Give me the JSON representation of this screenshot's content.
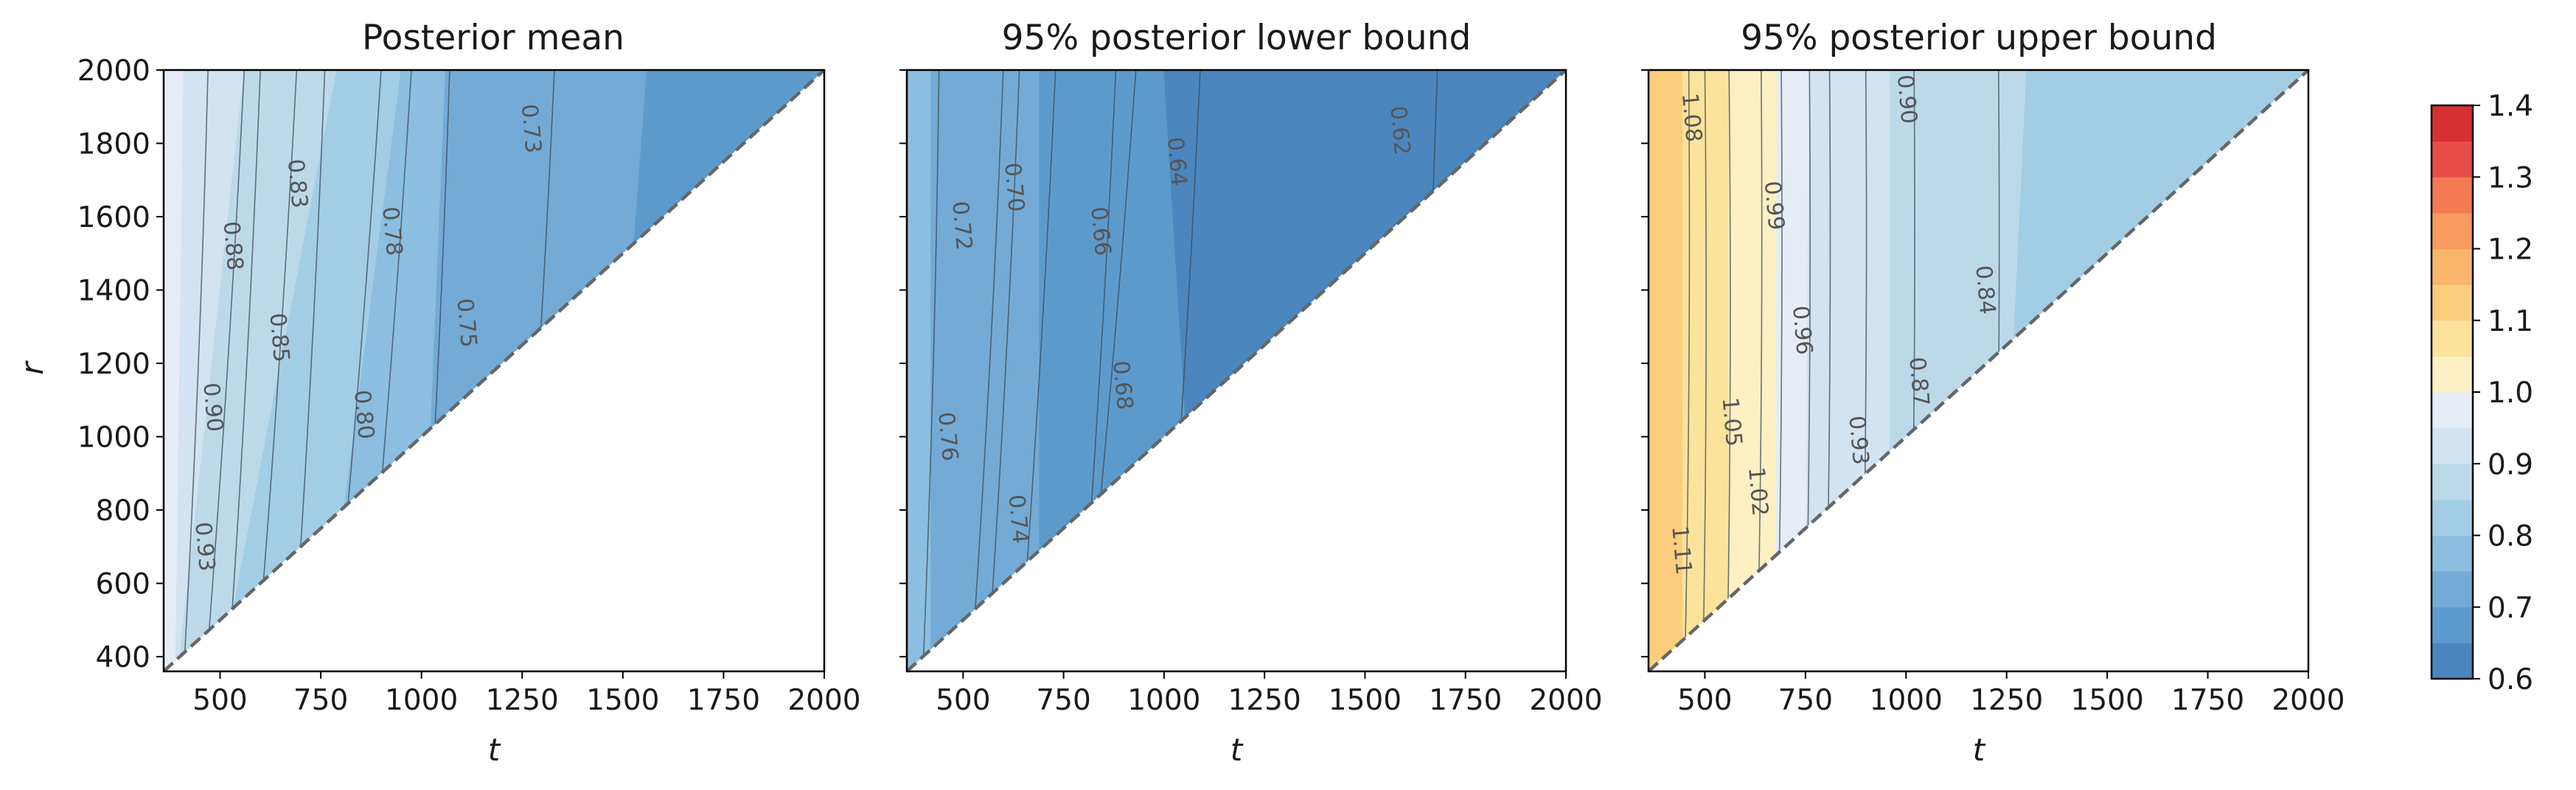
{
  "colorbar": {
    "levels": [
      0.6,
      0.65,
      0.7,
      0.75,
      0.8,
      0.85,
      0.9,
      0.95,
      1.0,
      1.05,
      1.1,
      1.15,
      1.2,
      1.25,
      1.3,
      1.35,
      1.4
    ],
    "colors": [
      "#4b86bf",
      "#5d9acc",
      "#73abd6",
      "#8bbedf",
      "#a3cde5",
      "#bcd9ea",
      "#d2e3f1",
      "#e6edf6",
      "#fcf0c4",
      "#fce39b",
      "#fbcd7c",
      "#f9b569",
      "#f89b5e",
      "#f37a52",
      "#e74e47",
      "#d73030"
    ],
    "tick_labels": [
      "0.6",
      "0.7",
      "0.8",
      "0.9",
      "1.0",
      "1.1",
      "1.2",
      "1.3",
      "1.4"
    ]
  },
  "chart_data": [
    {
      "type": "contour",
      "title": "Posterior mean",
      "xlabel": "t",
      "ylabel": "r",
      "xlim": [
        360,
        2000
      ],
      "ylim": [
        360,
        2000
      ],
      "x_ticks": [
        500,
        750,
        1000,
        1250,
        1500,
        1750,
        2000
      ],
      "y_ticks": [
        400,
        600,
        800,
        1000,
        1200,
        1400,
        1600,
        1800,
        2000
      ],
      "domain": "r >= t",
      "diagonal": "r = t (dashed)",
      "bands": [
        {
          "from": 0.95,
          "to": 1.0,
          "t_at_r2000": [
            360,
            410
          ],
          "t_at_r400": [
            360,
            390
          ]
        },
        {
          "from": 0.9,
          "to": 0.95,
          "t_at_r2000": [
            410,
            560
          ],
          "t_at_r400": [
            390,
            400
          ]
        },
        {
          "from": 0.85,
          "to": 0.9,
          "t_at_r2000": [
            560,
            790
          ],
          "t_at_r400": [
            400,
            510
          ]
        },
        {
          "from": 0.8,
          "to": 0.85,
          "t_at_r2000": [
            790,
            950
          ],
          "t_at_r400": [
            510,
            760
          ]
        },
        {
          "from": 0.75,
          "to": 0.8,
          "t_at_r2000": [
            950,
            1060
          ],
          "t_at_r400": [
            760,
            1000
          ]
        },
        {
          "from": 0.7,
          "to": 0.75,
          "t_at_r2000": [
            1060,
            1560
          ],
          "t_at_r400": [
            1000,
            1450
          ]
        },
        {
          "from": 0.65,
          "to": 0.7,
          "t_at_r2000": [
            1560,
            2000
          ],
          "t_at_r400": [
            1450,
            2000
          ]
        }
      ],
      "contours": [
        {
          "level": "0.93",
          "t_top": 470,
          "t_bottom": 410,
          "label_at": [
            460,
            700
          ]
        },
        {
          "level": "0.90",
          "t_top": 560,
          "t_bottom": 465,
          "label_at": [
            480,
            1080
          ]
        },
        {
          "level": "0.88",
          "t_top": 600,
          "t_bottom": 520,
          "label_at": [
            530,
            1520
          ]
        },
        {
          "level": "0.85",
          "t_top": 690,
          "t_bottom": 590,
          "label_at": [
            645,
            1270
          ]
        },
        {
          "level": "0.83",
          "t_top": 760,
          "t_bottom": 680,
          "label_at": [
            690,
            1690
          ]
        },
        {
          "level": "0.80",
          "t_top": 900,
          "t_bottom": 780,
          "label_at": [
            855,
            1060
          ]
        },
        {
          "level": "0.78",
          "t_top": 975,
          "t_bottom": 860,
          "label_at": [
            925,
            1560
          ]
        },
        {
          "level": "0.75",
          "t_top": 1070,
          "t_bottom": 1000,
          "label_at": [
            1110,
            1310
          ]
        },
        {
          "level": "0.73",
          "t_top": 1330,
          "t_bottom": 1240,
          "label_at": [
            1270,
            1840
          ]
        }
      ]
    },
    {
      "type": "contour",
      "title": "95% posterior lower bound",
      "xlabel": "t",
      "ylabel": "",
      "xlim": [
        360,
        2000
      ],
      "ylim": [
        360,
        2000
      ],
      "x_ticks": [
        500,
        750,
        1000,
        1250,
        1500,
        1750,
        2000
      ],
      "y_ticks": [
        400,
        600,
        800,
        1000,
        1200,
        1400,
        1600,
        1800,
        2000
      ],
      "domain": "r >= t",
      "diagonal": "r = t (dashed)",
      "bands": [
        {
          "from": 0.75,
          "to": 0.8,
          "t_at_r2000": [
            360,
            420
          ],
          "t_at_r400": [
            360,
            420
          ]
        },
        {
          "from": 0.7,
          "to": 0.75,
          "t_at_r2000": [
            420,
            690
          ],
          "t_at_r400": [
            420,
            690
          ]
        },
        {
          "from": 0.65,
          "to": 0.7,
          "t_at_r2000": [
            690,
            1000
          ],
          "t_at_r400": [
            690,
            1090
          ]
        },
        {
          "from": 0.6,
          "to": 0.65,
          "t_at_r2000": [
            1000,
            2000
          ],
          "t_at_r400": [
            1090,
            2000
          ]
        }
      ],
      "contours": [
        {
          "level": "0.76",
          "t_top": 440,
          "t_bottom": 400,
          "label_at": [
            460,
            1000
          ]
        },
        {
          "level": "0.74",
          "t_top": 640,
          "t_bottom": 560,
          "label_at": [
            635,
            775
          ]
        },
        {
          "level": "0.72",
          "t_top": 600,
          "t_bottom": 520,
          "label_at": [
            495,
            1575
          ]
        },
        {
          "level": "0.70",
          "t_top": 730,
          "t_bottom": 640,
          "label_at": [
            625,
            1680
          ]
        },
        {
          "level": "0.68",
          "t_top": 930,
          "t_bottom": 800,
          "label_at": [
            895,
            1140
          ]
        },
        {
          "level": "0.66",
          "t_top": 880,
          "t_bottom": 790,
          "label_at": [
            840,
            1560
          ]
        },
        {
          "level": "0.64",
          "t_top": 1090,
          "t_bottom": 1000,
          "label_at": [
            1030,
            1750
          ]
        },
        {
          "level": "0.62",
          "t_top": 1680,
          "t_bottom": 1610,
          "label_at": [
            1585,
            1835
          ]
        }
      ]
    },
    {
      "type": "contour",
      "title": "95% posterior upper bound",
      "xlabel": "t",
      "ylabel": "",
      "xlim": [
        360,
        2000
      ],
      "ylim": [
        360,
        2000
      ],
      "x_ticks": [
        500,
        750,
        1000,
        1250,
        1500,
        1750,
        2000
      ],
      "y_ticks": [
        400,
        600,
        800,
        1000,
        1200,
        1400,
        1600,
        1800,
        2000
      ],
      "domain": "r >= t",
      "diagonal": "r = t (dashed)",
      "bands": [
        {
          "from": 1.1,
          "to": 1.15,
          "t_at_r2000": [
            360,
            445
          ],
          "t_at_r400": [
            360,
            445
          ]
        },
        {
          "from": 1.05,
          "to": 1.1,
          "t_at_r2000": [
            445,
            560
          ],
          "t_at_r400": [
            445,
            560
          ]
        },
        {
          "from": 1.0,
          "to": 1.05,
          "t_at_r2000": [
            560,
            680
          ],
          "t_at_r400": [
            560,
            675
          ]
        },
        {
          "from": 0.95,
          "to": 1.0,
          "t_at_r2000": [
            680,
            760
          ],
          "t_at_r400": [
            675,
            750
          ]
        },
        {
          "from": 0.9,
          "to": 0.95,
          "t_at_r2000": [
            760,
            960
          ],
          "t_at_r400": [
            750,
            960
          ]
        },
        {
          "from": 0.85,
          "to": 0.9,
          "t_at_r2000": [
            960,
            1300
          ],
          "t_at_r400": [
            960,
            1230
          ]
        },
        {
          "from": 0.8,
          "to": 0.85,
          "t_at_r2000": [
            1300,
            2000
          ],
          "t_at_r400": [
            1230,
            2000
          ]
        }
      ],
      "contours": [
        {
          "level": "1.11",
          "t_top": 460,
          "t_bottom": 450,
          "label_at": [
            440,
            690
          ]
        },
        {
          "level": "1.08",
          "t_top": 500,
          "t_bottom": 495,
          "label_at": [
            465,
            1870
          ]
        },
        {
          "level": "1.05",
          "t_top": 560,
          "t_bottom": 555,
          "label_at": [
            565,
            1040
          ]
        },
        {
          "level": "1.02",
          "t_top": 640,
          "t_bottom": 630,
          "label_at": [
            630,
            850
          ]
        },
        {
          "level": "0.99",
          "t_top": 690,
          "t_bottom": 680,
          "label_at": [
            670,
            1630
          ]
        },
        {
          "level": "0.96",
          "t_top": 760,
          "t_bottom": 750,
          "label_at": [
            740,
            1290
          ]
        },
        {
          "level": "0.93",
          "t_top": 810,
          "t_bottom": 800,
          "label_at": [
            880,
            990
          ]
        },
        {
          "level": "0.90",
          "t_top": 900,
          "t_bottom": 890,
          "label_at": [
            1000,
            1920
          ]
        },
        {
          "level": "0.87",
          "t_top": 1020,
          "t_bottom": 1010,
          "label_at": [
            1030,
            1150
          ]
        },
        {
          "level": "0.84",
          "t_top": 1230,
          "t_bottom": 1220,
          "label_at": [
            1195,
            1400
          ]
        }
      ]
    }
  ]
}
